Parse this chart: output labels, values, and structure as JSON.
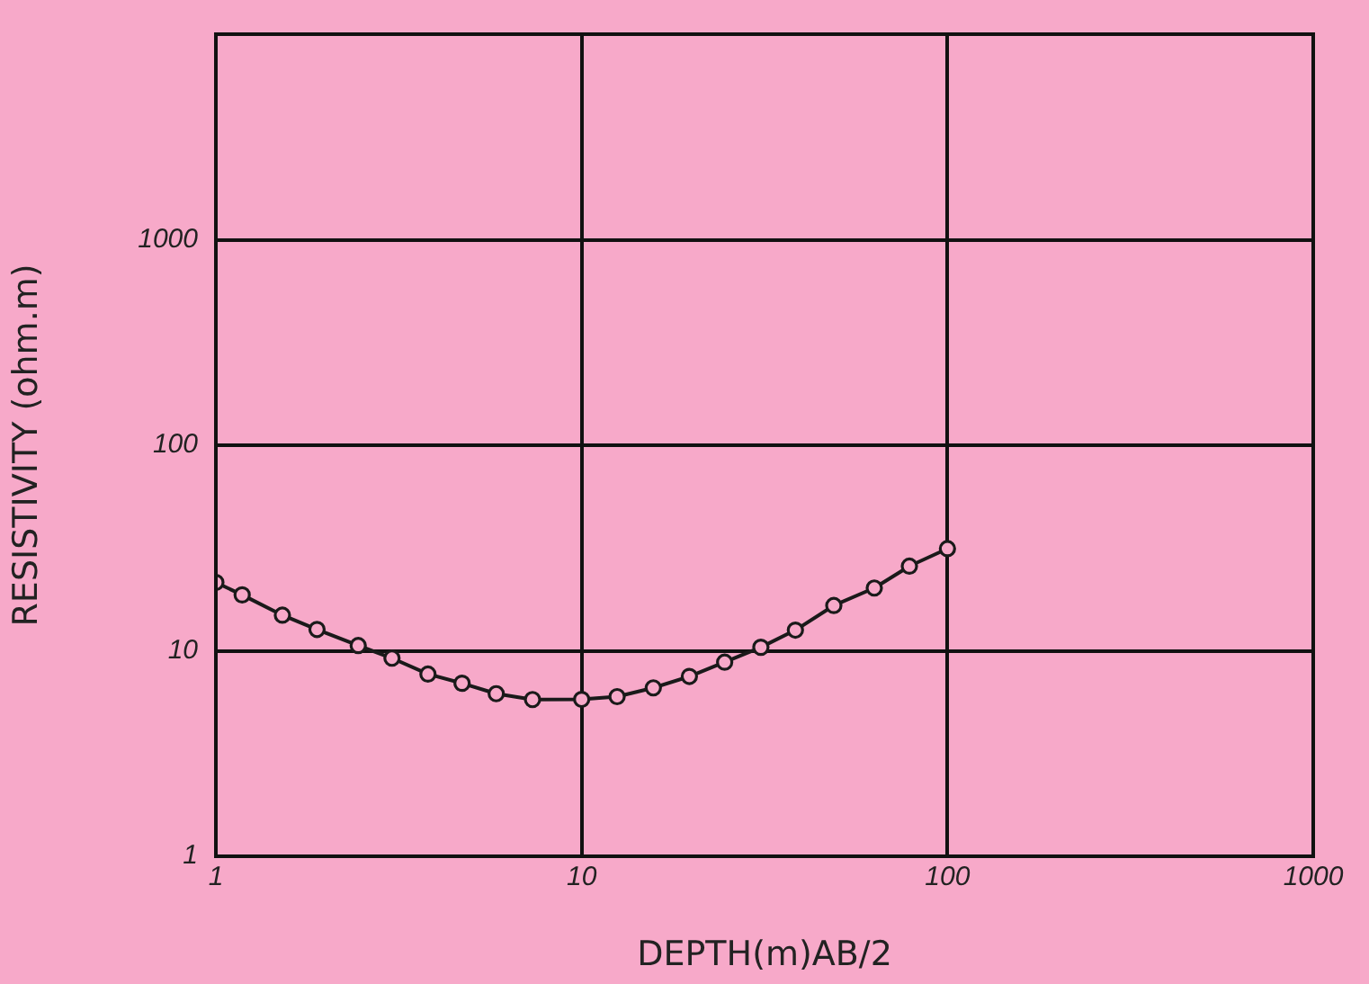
{
  "chart_data": {
    "type": "line",
    "xlabel": "DEPTH(m)AB/2",
    "ylabel": "RESISTIVITY (ohm.m)",
    "log": "xy",
    "grid": true,
    "marker": "circle",
    "line_style": "solid",
    "legend": false,
    "xlim": [
      1,
      1000
    ],
    "xticks": [
      1,
      10,
      100,
      1000
    ],
    "ylim": [
      1,
      10000
    ],
    "yticks": [
      1,
      10,
      100,
      1000,
      {
        "value": 10000,
        "label": null
      }
    ],
    "series": [
      {
        "color": "#1a1a1a",
        "x": [
          1,
          1.18,
          1.52,
          1.89,
          2.45,
          3.03,
          3.8,
          4.71,
          5.84,
          7.34,
          10,
          12.5,
          15.7,
          19.7,
          24.6,
          30.9,
          38.4,
          48.9,
          63.1,
          78.7,
          100
        ],
        "values": [
          21.5,
          18.7,
          14.9,
          12.7,
          10.6,
          9.2,
          7.7,
          6.95,
          6.18,
          5.79,
          5.8,
          5.98,
          6.6,
          7.5,
          8.8,
          10.4,
          12.6,
          16.6,
          20.2,
          25.8,
          31.4
        ]
      }
    ]
  }
}
